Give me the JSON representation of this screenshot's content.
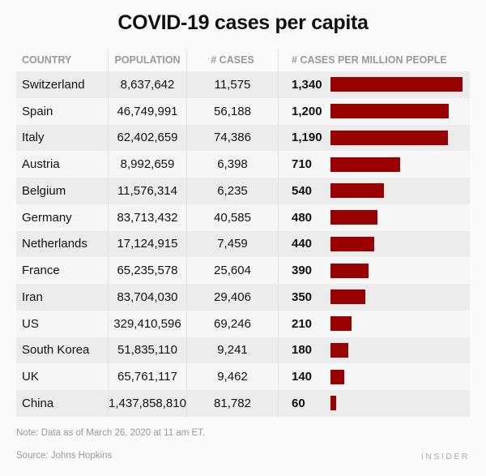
{
  "chart_data": {
    "type": "table",
    "title": "COVID-19 cases per capita",
    "columns": [
      "COUNTRY",
      "POPULATION",
      "# CASES",
      "# CASES PER MILLION PEOPLE"
    ],
    "rows": [
      {
        "country": "Switzerland",
        "population": "8,637,642",
        "cases": "11,575",
        "per_million": "1,340",
        "value": 1340
      },
      {
        "country": "Spain",
        "population": "46,749,991",
        "cases": "56,188",
        "per_million": "1,200",
        "value": 1200
      },
      {
        "country": "Italy",
        "population": "62,402,659",
        "cases": "74,386",
        "per_million": "1,190",
        "value": 1190
      },
      {
        "country": "Austria",
        "population": "8,992,659",
        "cases": "6,398",
        "per_million": "710",
        "value": 710
      },
      {
        "country": "Belgium",
        "population": "11,576,314",
        "cases": "6,235",
        "per_million": "540",
        "value": 540
      },
      {
        "country": "Germany",
        "population": "83,713,432",
        "cases": "40,585",
        "per_million": "480",
        "value": 480
      },
      {
        "country": "Netherlands",
        "population": "17,124,915",
        "cases": "7,459",
        "per_million": "440",
        "value": 440
      },
      {
        "country": "France",
        "population": "65,235,578",
        "cases": "25,604",
        "per_million": "390",
        "value": 390
      },
      {
        "country": "Iran",
        "population": "83,704,030",
        "cases": "29,406",
        "per_million": "350",
        "value": 350
      },
      {
        "country": "US",
        "population": "329,410,596",
        "cases": "69,246",
        "per_million": "210",
        "value": 210
      },
      {
        "country": "South Korea",
        "population": "51,835,110",
        "cases": "9,241",
        "per_million": "180",
        "value": 180
      },
      {
        "country": "UK",
        "population": "65,761,117",
        "cases": "9,462",
        "per_million": "140",
        "value": 140
      },
      {
        "country": "China",
        "population": "1,437,858,810",
        "cases": "81,782",
        "per_million": "60",
        "value": 60
      }
    ],
    "bar_color": "#990000"
  },
  "footer": {
    "note": "Note: Data as of March 26, 2020 at 11 am ET.",
    "source": "Source: Johns Hopkins",
    "brand": "INSIDER"
  }
}
